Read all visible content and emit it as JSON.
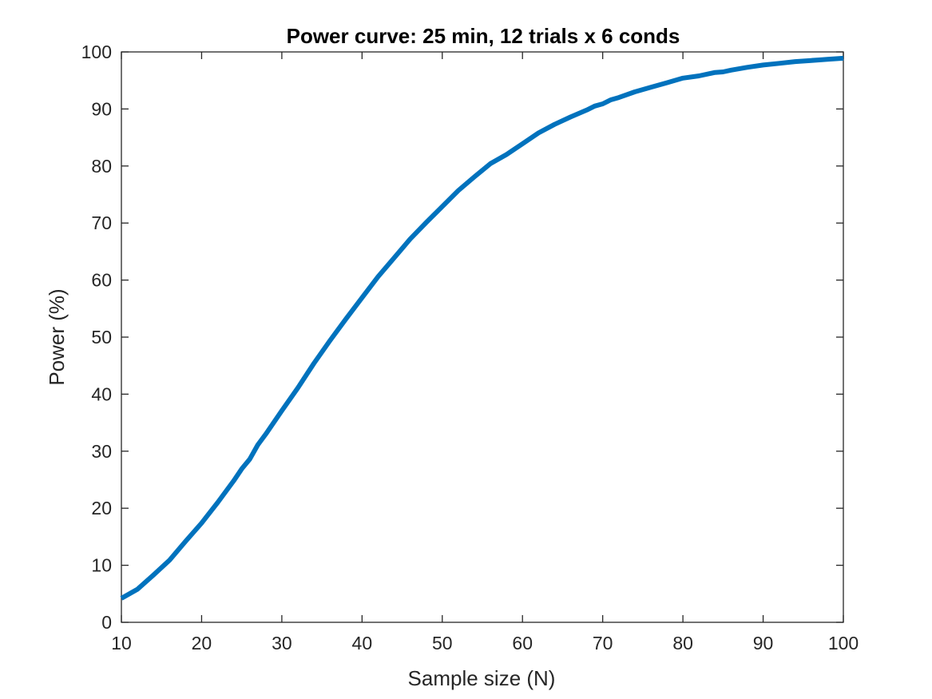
{
  "chart_data": {
    "type": "line",
    "title": "Power curve: 25 min, 12 trials x 6 conds",
    "xlabel": "Sample size (N)",
    "ylabel": "Power (%)",
    "xlim": [
      10,
      100
    ],
    "ylim": [
      0,
      100
    ],
    "xticks": [
      10,
      20,
      30,
      40,
      50,
      60,
      70,
      80,
      90,
      100
    ],
    "yticks": [
      0,
      10,
      20,
      30,
      40,
      50,
      60,
      70,
      80,
      90,
      100
    ],
    "grid": false,
    "colors": {
      "line": "#0072BD",
      "axis": "#262626"
    },
    "series": [
      {
        "x": [
          10,
          12,
          14,
          16,
          18,
          20,
          22,
          24,
          25,
          26,
          27,
          28,
          30,
          32,
          34,
          36,
          38,
          40,
          42,
          44,
          46,
          48,
          50,
          52,
          54,
          56,
          58,
          60,
          62,
          64,
          66,
          68,
          69,
          70,
          71,
          72,
          74,
          76,
          78,
          80,
          82,
          84,
          85,
          86,
          88,
          90,
          92,
          94,
          96,
          97,
          98,
          100
        ],
        "y": [
          4.2,
          5.8,
          8.3,
          10.9,
          14.2,
          17.4,
          21.0,
          24.8,
          26.9,
          28.6,
          31.1,
          33.0,
          37.1,
          41.1,
          45.4,
          49.4,
          53.2,
          56.9,
          60.6,
          63.9,
          67.2,
          70.1,
          72.9,
          75.7,
          78.1,
          80.4,
          82.0,
          83.9,
          85.8,
          87.3,
          88.6,
          89.8,
          90.5,
          90.9,
          91.6,
          92.0,
          93.0,
          93.8,
          94.6,
          95.4,
          95.8,
          96.4,
          96.5,
          96.8,
          97.3,
          97.7,
          98.0,
          98.3,
          98.5,
          98.6,
          98.7,
          98.9
        ]
      }
    ]
  }
}
